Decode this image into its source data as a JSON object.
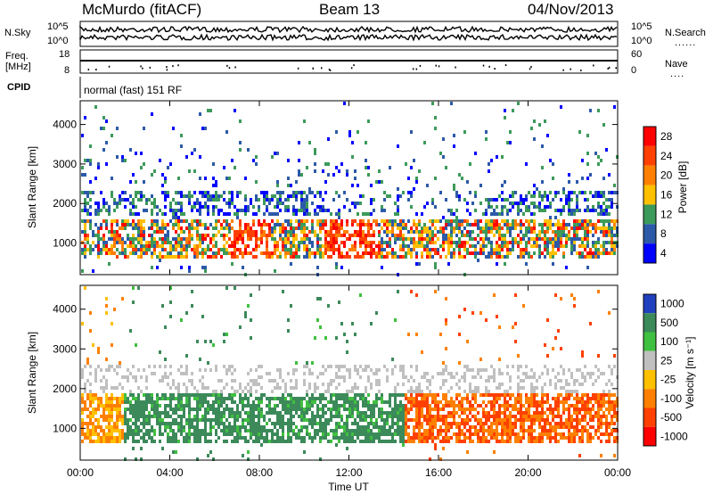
{
  "header": {
    "station": "McMurdo (fitACF)",
    "beam": "Beam 13",
    "date": "04/Nov/2013"
  },
  "noise_panel": {
    "left_label": "N.Sky",
    "right_label": "N.Search",
    "left_ticks": [
      "10^5",
      "10^0"
    ],
    "right_ticks": [
      "10^5",
      "10^0"
    ]
  },
  "freq_panel": {
    "left_label_line1": "Freq.",
    "left_label_line2": "[MHz]",
    "left_ticks": [
      "18",
      "8"
    ],
    "right_ticks": [
      "60",
      "0"
    ],
    "right_label": "Nave"
  },
  "cpid": {
    "label": "CPID",
    "value": "normal (fast) 151 RF"
  },
  "x_axis": {
    "label": "Time UT",
    "ticks": [
      "00:00",
      "04:00",
      "08:00",
      "12:00",
      "16:00",
      "20:00",
      "00:00"
    ]
  },
  "chart_data": [
    {
      "type": "heatmap",
      "title": "",
      "xlabel": "Time UT",
      "ylabel": "Slant Range [km]",
      "xlim": [
        "00:00",
        "24:00"
      ],
      "ylim": [
        200,
        4600
      ],
      "yticks": [
        "1000",
        "2000",
        "3000",
        "4000"
      ],
      "colorbar": {
        "label": "Power [dB]",
        "ticks": [
          "28",
          "24",
          "20",
          "16",
          "12",
          "8",
          "4"
        ],
        "colors": [
          "#ff0000",
          "#ff4000",
          "#ff8000",
          "#ffc000",
          "#3c9a5a",
          "#2c5aa8",
          "#0000ff"
        ]
      }
    },
    {
      "type": "heatmap",
      "title": "",
      "xlabel": "Time UT",
      "ylabel": "Slant Range [km]",
      "xlim": [
        "00:00",
        "24:00"
      ],
      "ylim": [
        200,
        4600
      ],
      "yticks": [
        "1000",
        "2000",
        "3000",
        "4000"
      ],
      "colorbar": {
        "label": "Velocity [m s⁻¹]",
        "ticks": [
          "1000",
          "500",
          "100",
          "25",
          "-25",
          "-100",
          "-500",
          "-1000"
        ],
        "colors": [
          "#2040c0",
          "#3c8a5a",
          "#40c040",
          "#c0c0c0",
          "#ffc000",
          "#ff8000",
          "#ff4000",
          "#ff0000"
        ]
      }
    }
  ]
}
